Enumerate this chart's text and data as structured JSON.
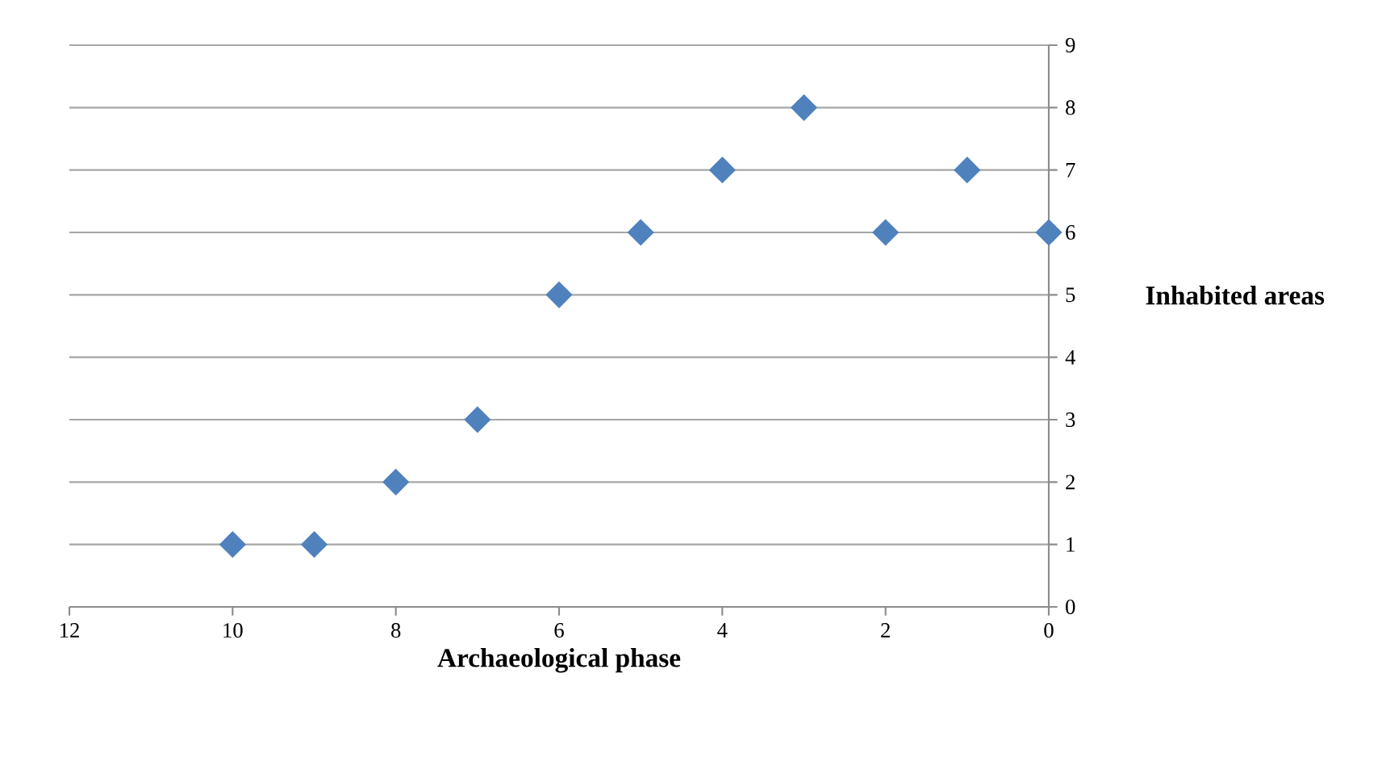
{
  "chart_data": {
    "type": "scatter",
    "xlabel": "Archaeological phase",
    "ylabel": "Inhabited areas",
    "x": [
      10,
      9,
      8,
      7,
      6,
      5,
      4,
      3,
      2,
      1,
      0
    ],
    "values": [
      1,
      1,
      2,
      3,
      5,
      6,
      7,
      8,
      6,
      7,
      6
    ],
    "color": "#4f81bd",
    "marker": "diamond",
    "xlim": [
      12,
      0
    ],
    "xticks": [
      12,
      10,
      8,
      6,
      4,
      2,
      0
    ],
    "ylim": [
      0,
      9
    ],
    "yticks": [
      0,
      1,
      2,
      3,
      4,
      5,
      6,
      7,
      8,
      9
    ],
    "grid": "y"
  }
}
